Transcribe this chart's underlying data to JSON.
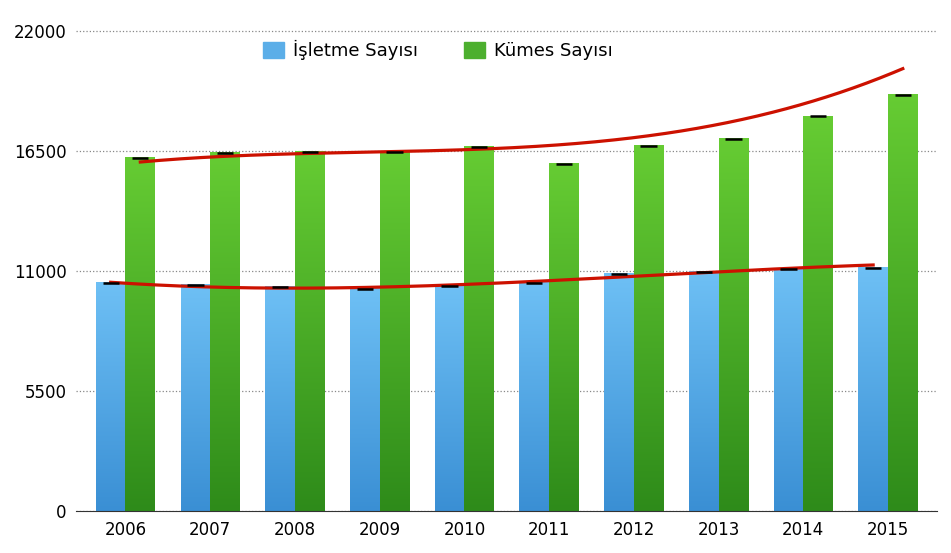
{
  "years": [
    2006,
    2007,
    2008,
    2009,
    2010,
    2011,
    2012,
    2013,
    2014,
    2015
  ],
  "isletme": [
    10480,
    10380,
    10270,
    10200,
    10340,
    10460,
    10880,
    10960,
    11100,
    11150
  ],
  "kumes": [
    16200,
    16420,
    16460,
    16480,
    16720,
    15920,
    16750,
    17050,
    18100,
    19100
  ],
  "isletme_color_top": "#6ec0f5",
  "isletme_color_bot": "#3a8fd4",
  "kumes_color_top": "#66cc33",
  "kumes_color_bot": "#2e8b1a",
  "trend_color": "#cc1100",
  "background_color": "#ffffff",
  "grid_color": "#888888",
  "grid_style": "dotted",
  "yticks": [
    0,
    5500,
    11000,
    16500,
    22000
  ],
  "ylim": [
    0,
    22800
  ],
  "legend_isletme": "İşletme Sayısı",
  "legend_kumes": "Kümes Sayısı",
  "bar_width": 0.35,
  "legend_isletme_color": "#5baee8",
  "legend_kumes_color": "#4caf2e"
}
